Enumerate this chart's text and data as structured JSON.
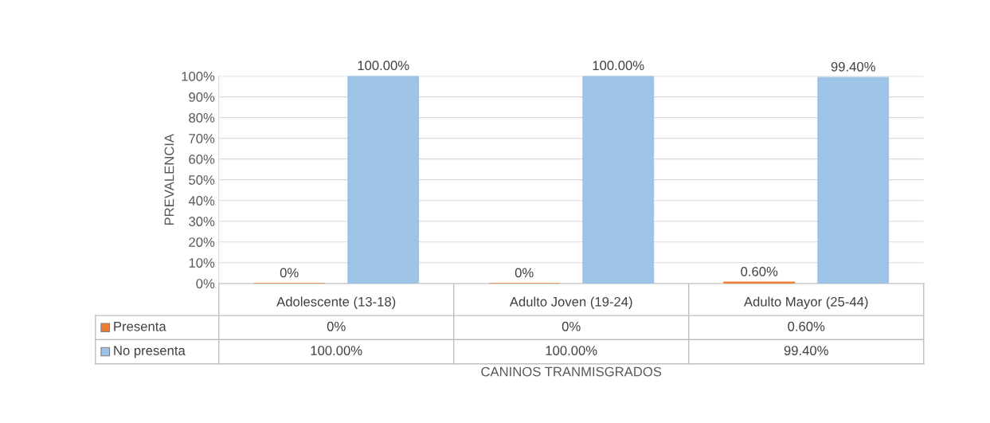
{
  "chart_data": {
    "type": "bar",
    "xlabel": "CANINOS TRANMISGRADOS",
    "ylabel": "PREVALENCIA",
    "categories": [
      "Adolescente (13-18)",
      "Adulto Joven (19-24)",
      "Adulto Mayor (25-44)"
    ],
    "series": [
      {
        "name": "Presenta",
        "color": "#ed7d31",
        "values": [
          0,
          0,
          0.6
        ],
        "value_labels": [
          "0%",
          "0%",
          "0.60%"
        ]
      },
      {
        "name": "No presenta",
        "color": "#9dc3e6",
        "values": [
          100,
          100,
          99.4
        ],
        "value_labels": [
          "100.00%",
          "100.00%",
          "99.40%"
        ]
      }
    ],
    "ylim": [
      0,
      100
    ],
    "yticks": [
      {
        "value": 0,
        "label": "0%"
      },
      {
        "value": 10,
        "label": "10%"
      },
      {
        "value": 20,
        "label": "20%"
      },
      {
        "value": 30,
        "label": "30%"
      },
      {
        "value": 40,
        "label": "40%"
      },
      {
        "value": 50,
        "label": "50%"
      },
      {
        "value": 60,
        "label": "60%"
      },
      {
        "value": 70,
        "label": "70%"
      },
      {
        "value": 80,
        "label": "80%"
      },
      {
        "value": 90,
        "label": "90%"
      },
      {
        "value": 100,
        "label": "100%"
      }
    ],
    "grid": "y",
    "legend": "bottom"
  }
}
